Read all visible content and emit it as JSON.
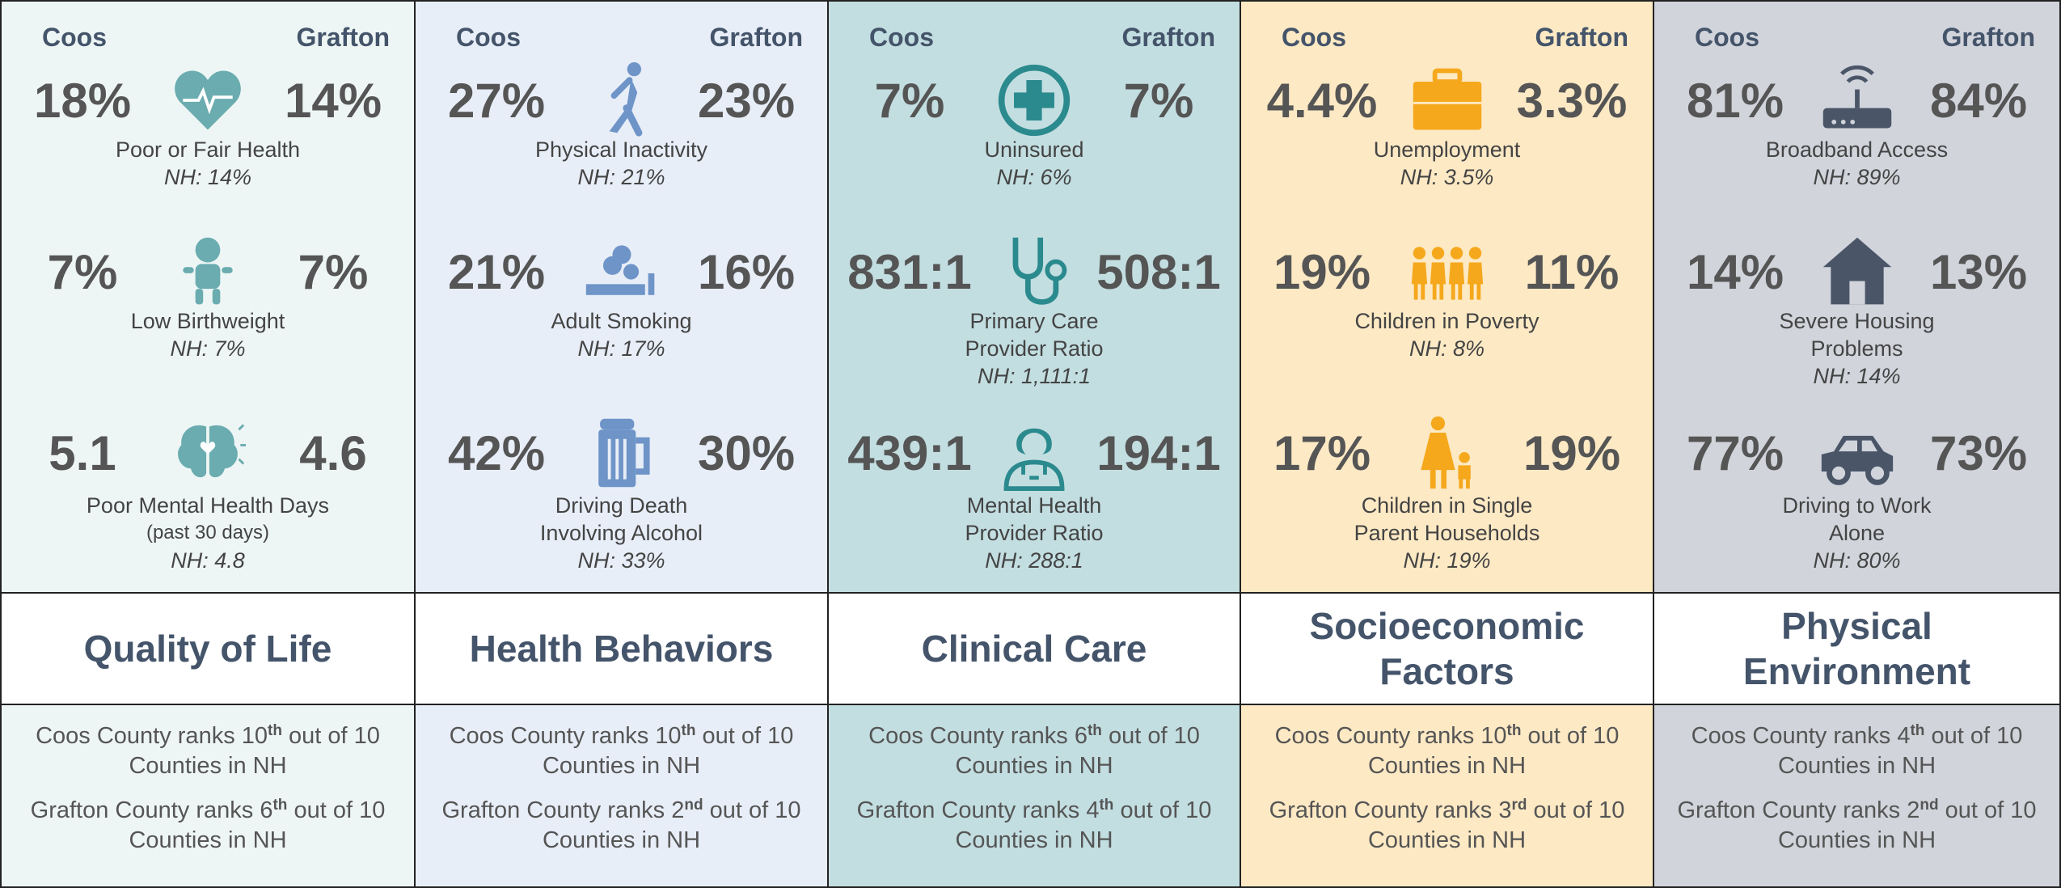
{
  "columns": [
    {
      "title": [
        "Quality of Life"
      ],
      "left_header": "Coos",
      "right_header": "Grafton",
      "metrics": [
        {
          "coos": "18%",
          "grafton": "14%",
          "label": [
            "Poor or Fair Health"
          ],
          "nh": "NH: 14%"
        },
        {
          "coos": "7%",
          "grafton": "7%",
          "label": [
            "Low Birthweight"
          ],
          "nh": "NH: 7%"
        },
        {
          "coos": "5.1",
          "grafton": "4.6",
          "label": [
            "Poor Mental Health Days"
          ],
          "note": "(past 30 days)",
          "nh": "NH: 4.8"
        }
      ],
      "ranks": [
        {
          "lead": "Coos County ranks",
          "rank": "10",
          "suffix": "th",
          "tail": "out of 10 Counties in NH"
        },
        {
          "lead": "Grafton County ranks",
          "rank": "6",
          "suffix": "th",
          "tail": "out of 10 Counties in NH"
        }
      ]
    },
    {
      "title": [
        "Health Behaviors"
      ],
      "left_header": "Coos",
      "right_header": "Grafton",
      "metrics": [
        {
          "coos": "27%",
          "grafton": "23%",
          "label": [
            "Physical Inactivity"
          ],
          "nh": "NH: 21%"
        },
        {
          "coos": "21%",
          "grafton": "16%",
          "label": [
            "Adult Smoking"
          ],
          "nh": "NH: 17%"
        },
        {
          "coos": "42%",
          "grafton": "30%",
          "label": [
            "Driving Death",
            "Involving Alcohol"
          ],
          "nh": "NH: 33%"
        }
      ],
      "ranks": [
        {
          "lead": "Coos County ranks",
          "rank": "10",
          "suffix": "th",
          "tail": "out of 10 Counties in NH"
        },
        {
          "lead": "Grafton County ranks",
          "rank": "2",
          "suffix": "nd",
          "tail": "out of 10 Counties in NH"
        }
      ]
    },
    {
      "title": [
        "Clinical Care"
      ],
      "left_header": "Coos",
      "right_header": "Grafton",
      "metrics": [
        {
          "coos": "7%",
          "grafton": "7%",
          "label": [
            "Uninsured"
          ],
          "nh": "NH: 6%"
        },
        {
          "coos": "831:1",
          "grafton": "508:1",
          "label": [
            "Primary Care",
            "Provider Ratio"
          ],
          "nh": "NH: 1,111:1"
        },
        {
          "coos": "439:1",
          "grafton": "194:1",
          "label": [
            "Mental Health",
            "Provider Ratio"
          ],
          "nh": "NH: 288:1"
        }
      ],
      "ranks": [
        {
          "lead": "Coos County ranks",
          "rank": "6",
          "suffix": "th",
          "tail": "out of 10 Counties in NH"
        },
        {
          "lead": "Grafton County ranks",
          "rank": "4",
          "suffix": "th",
          "tail": "out of 10 Counties in NH"
        }
      ]
    },
    {
      "title": [
        "Socioeconomic",
        "Factors"
      ],
      "left_header": "Coos",
      "right_header": "Grafton",
      "metrics": [
        {
          "coos": "4.4%",
          "grafton": "3.3%",
          "label": [
            "Unemployment"
          ],
          "nh": "NH: 3.5%"
        },
        {
          "coos": "19%",
          "grafton": "11%",
          "label": [
            "Children in Poverty"
          ],
          "nh": "NH: 8%"
        },
        {
          "coos": "17%",
          "grafton": "19%",
          "label": [
            "Children in Single",
            "Parent Households"
          ],
          "nh": "NH: 19%"
        }
      ],
      "ranks": [
        {
          "lead": "Coos County ranks",
          "rank": "10",
          "suffix": "th",
          "tail": "out of 10 Counties in NH"
        },
        {
          "lead": "Grafton County ranks",
          "rank": "3",
          "suffix": "rd",
          "tail": "out of 10 Counties in NH"
        }
      ]
    },
    {
      "title": [
        "Physical",
        "Environment"
      ],
      "left_header": "Coos",
      "right_header": "Grafton",
      "metrics": [
        {
          "coos": "81%",
          "grafton": "84%",
          "label": [
            "Broadband Access"
          ],
          "nh": "NH: 89%"
        },
        {
          "coos": "14%",
          "grafton": "13%",
          "label": [
            "Severe Housing",
            "Problems"
          ],
          "nh": "NH: 14%"
        },
        {
          "coos": "77%",
          "grafton": "73%",
          "label": [
            "Driving to Work",
            "Alone"
          ],
          "nh": "NH: 80%"
        }
      ],
      "ranks": [
        {
          "lead": "Coos County ranks",
          "rank": "4",
          "suffix": "th",
          "tail": "out of 10 Counties in NH"
        },
        {
          "lead": "Grafton County ranks",
          "rank": "2",
          "suffix": "nd",
          "tail": "out of 10 Counties in NH"
        }
      ]
    }
  ]
}
